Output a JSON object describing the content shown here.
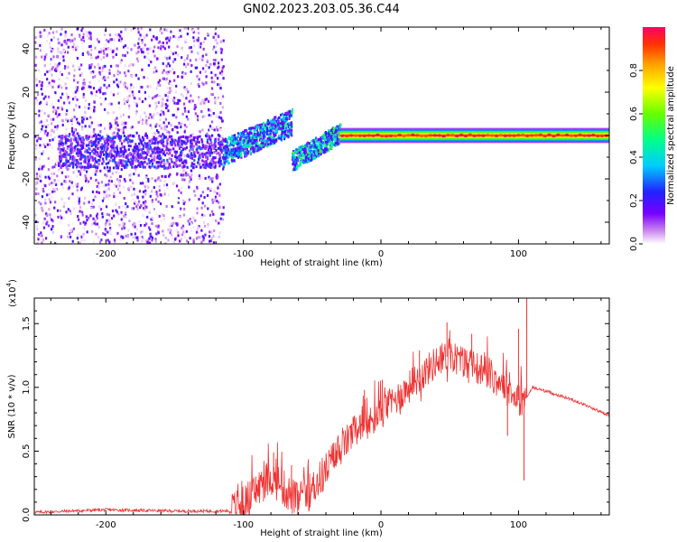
{
  "title": "GN02.2023.203.05.36.C44",
  "chart_data": [
    {
      "type": "heatmap",
      "name": "spectrogram",
      "xlabel": "Height of straight line (km)",
      "ylabel": "Frequency (Hz)",
      "xlim": [
        -252,
        166
      ],
      "ylim": [
        -50,
        50
      ],
      "xticks": [
        -200,
        -100,
        0,
        100
      ],
      "yticks": [
        -40,
        -20,
        0,
        20,
        40
      ],
      "colorbar": {
        "label": "Normalized spectral amplitude",
        "range": [
          0,
          1
        ],
        "ticks": [
          0.0,
          0.2,
          0.4,
          0.6,
          0.8
        ],
        "tick_labels": [
          "0.0",
          "0.2",
          "0.4",
          "0.6",
          "0.8"
        ],
        "colormap": [
          "#ffffff",
          "#cc88ee",
          "#7700ff",
          "#2222ff",
          "#00ccff",
          "#00ff88",
          "#66ff00",
          "#ffff00",
          "#ffaa00",
          "#ff3300",
          "#ff0066"
        ]
      },
      "regions": [
        {
          "description": "broadband noise",
          "x_range": [
            -252,
            -115
          ],
          "freq_range": [
            -50,
            50
          ],
          "amplitude": 0.05
        },
        {
          "description": "noise band",
          "x_range": [
            -235,
            -115
          ],
          "freq_range": [
            -15,
            0
          ],
          "amplitude": 0.15
        },
        {
          "description": "signal rising",
          "x_range": [
            -115,
            -65
          ],
          "freq_range": [
            -12,
            10
          ],
          "amplitude": 0.3
        },
        {
          "description": "signal second branch",
          "x_range": [
            -65,
            -30
          ],
          "freq_range": [
            -15,
            8
          ],
          "amplitude": 0.35
        },
        {
          "description": "steady carrier",
          "x_range": [
            -30,
            166
          ],
          "freq_center": 0,
          "amplitude": 0.9
        }
      ]
    },
    {
      "type": "line",
      "name": "snr",
      "xlabel": "Height of straight line (km)",
      "ylabel": "SNR (10 * v/v)",
      "y_multiplier_label": "(x10",
      "y_multiplier_exp": "4",
      "y_multiplier_close": ")",
      "xlim": [
        -252,
        166
      ],
      "ylim": [
        0,
        17000
      ],
      "xticks": [
        -200,
        -100,
        0,
        100
      ],
      "yticks": [
        0,
        5000,
        10000,
        15000
      ],
      "ytick_labels": [
        "0.0",
        "0.5",
        "1.0",
        "1.5"
      ],
      "color": "#ee3333",
      "x": [
        -252,
        -200,
        -150,
        -110,
        -100,
        -90,
        -80,
        -70,
        -60,
        -50,
        -40,
        -30,
        -20,
        -10,
        0,
        10,
        20,
        30,
        40,
        50,
        60,
        70,
        80,
        90,
        100,
        105,
        110,
        120,
        140,
        166
      ],
      "y": [
        200,
        400,
        300,
        300,
        800,
        2000,
        3000,
        2000,
        1000,
        2000,
        3500,
        5000,
        6500,
        7000,
        8000,
        9000,
        10000,
        11000,
        12000,
        12500,
        12000,
        11500,
        11000,
        10000,
        9000,
        9000,
        10000,
        9700,
        9000,
        7800
      ],
      "spikes": [
        {
          "x": -78,
          "y": 4900
        },
        {
          "x": -65,
          "y": 3900
        },
        {
          "x": -22,
          "y": 7000
        },
        {
          "x": -12,
          "y": 9800
        },
        {
          "x": 1,
          "y": 10600
        },
        {
          "x": 28,
          "y": 12900
        },
        {
          "x": 48,
          "y": 15100
        },
        {
          "x": 66,
          "y": 14200
        },
        {
          "x": 100,
          "y": 14600
        },
        {
          "x": 106,
          "y": 17000
        }
      ],
      "dips": [
        {
          "x": 104,
          "y": 2700
        },
        {
          "x": 92,
          "y": 6200
        }
      ]
    }
  ]
}
